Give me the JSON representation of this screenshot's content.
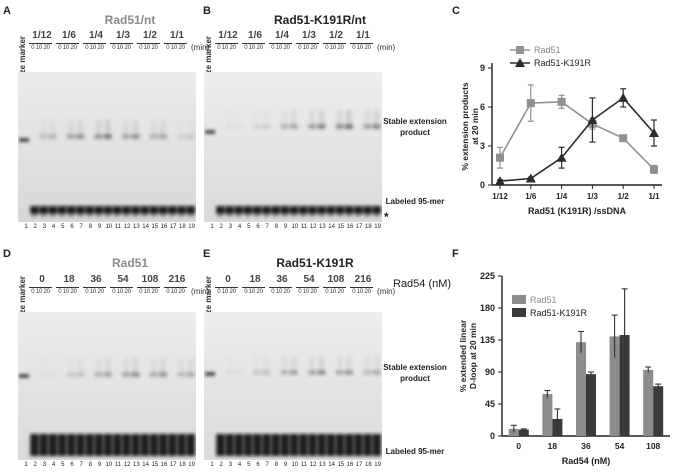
{
  "panels": {
    "a": {
      "letter": "A",
      "title": "Rad51/nt",
      "groups": [
        "1/12",
        "1/6",
        "1/4",
        "1/3",
        "1/2",
        "1/1"
      ],
      "times": "0  10 20",
      "min": "(min)",
      "size_marker": "size marker",
      "lanes": [
        "1",
        "2",
        "3",
        "4",
        "5",
        "6",
        "7",
        "8",
        "9",
        "10",
        "11",
        "12",
        "13",
        "14",
        "15",
        "16",
        "17",
        "18",
        "19"
      ]
    },
    "b": {
      "letter": "B",
      "title": "Rad51-K191R/nt",
      "groups": [
        "1/12",
        "1/6",
        "1/4",
        "1/3",
        "1/2",
        "1/1"
      ],
      "times": "0  10 20",
      "min": "(min)",
      "size_marker": "size marker",
      "lanes": [
        "1",
        "2",
        "3",
        "4",
        "5",
        "6",
        "7",
        "8",
        "9",
        "10",
        "11",
        "12",
        "13",
        "14",
        "15",
        "16",
        "17",
        "18",
        "19"
      ],
      "stable_label": "Stable extension product",
      "labeled_label": "Labeled 95-mer",
      "star": "*"
    },
    "d": {
      "letter": "D",
      "title": "Rad51",
      "groups": [
        "0",
        "18",
        "36",
        "54",
        "108",
        "216"
      ],
      "times": "0  10 20",
      "min": "(min)",
      "size_marker": "size marker",
      "lanes": [
        "1",
        "2",
        "3",
        "4",
        "5",
        "6",
        "7",
        "8",
        "9",
        "10",
        "11",
        "12",
        "13",
        "14",
        "15",
        "16",
        "17",
        "18",
        "19"
      ]
    },
    "e": {
      "letter": "E",
      "title": "Rad51-K191R",
      "groups": [
        "0",
        "18",
        "36",
        "54",
        "108",
        "216"
      ],
      "times": "0  10 20",
      "min": "(min)",
      "size_marker": "size marker",
      "rad54": "Rad54 (nM)",
      "lanes": [
        "1",
        "2",
        "3",
        "4",
        "5",
        "6",
        "7",
        "8",
        "9",
        "10",
        "11",
        "12",
        "13",
        "14",
        "15",
        "16",
        "17",
        "18",
        "19"
      ],
      "stable_label": "Stable extension product",
      "labeled_label": "Labeled 95-mer"
    },
    "c": {
      "letter": "C"
    },
    "f": {
      "letter": "F"
    }
  },
  "chart_data": [
    {
      "type": "line",
      "panel": "C",
      "categories": [
        "1/12",
        "1/6",
        "1/4",
        "1/3",
        "1/2",
        "1/1"
      ],
      "xlabel": "Rad51 (K191R) /ssDNA",
      "ylabel": "% extension products at 20 min",
      "ylim": [
        0,
        9
      ],
      "yticks": [
        "0",
        "3",
        "6",
        "9"
      ],
      "legend": "top-left",
      "series": [
        {
          "name": "Rad51",
          "marker": "square",
          "color": "#909090",
          "values": [
            2.1,
            6.3,
            6.4,
            4.7,
            3.6,
            1.2
          ],
          "errors": [
            0.8,
            1.4,
            0.5,
            0.4,
            0.1,
            0.3
          ]
        },
        {
          "name": "Rad51-K191R",
          "marker": "triangle",
          "color": "#2b2b2b",
          "values": [
            0.3,
            0.5,
            2.1,
            5.0,
            6.7,
            4.0
          ],
          "errors": [
            0.1,
            0.1,
            0.8,
            1.7,
            0.7,
            1.0
          ]
        }
      ]
    },
    {
      "type": "bar",
      "panel": "F",
      "categories": [
        "0",
        "18",
        "36",
        "54",
        "108"
      ],
      "xlabel": "Rad54 (nM)",
      "ylabel": "% extended linear D-loop at 20 min",
      "ylim": [
        0,
        225
      ],
      "yticks": [
        "0",
        "45",
        "90",
        "135",
        "180",
        "225"
      ],
      "legend": "top-left",
      "series": [
        {
          "name": "Rad51",
          "color": "#8c8c8c",
          "values": [
            10,
            59,
            132,
            140,
            93
          ],
          "errors": [
            5,
            5,
            15,
            30,
            4
          ]
        },
        {
          "name": "Rad51-K191R",
          "color": "#3a3a3a",
          "values": [
            9,
            24,
            87,
            142,
            70
          ],
          "errors": [
            1,
            14,
            3,
            65,
            3
          ]
        }
      ]
    }
  ]
}
